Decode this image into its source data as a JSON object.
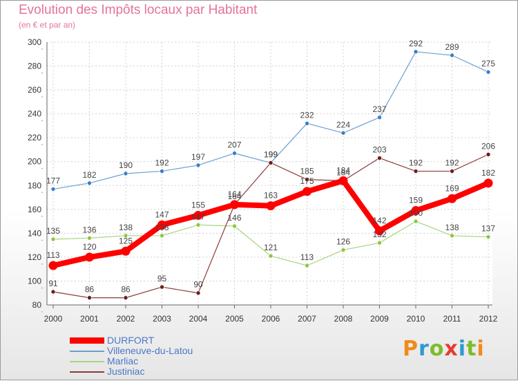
{
  "title": "Evolution des Impôts locaux par Habitant",
  "subtitle": "(en € et par an)",
  "logo_text": "Proxiti",
  "colors": {
    "title": "#e4739a",
    "legend_text": "#4a77c9",
    "axis_text": "#333333",
    "logo": [
      "#f08a1c",
      "#2e9ad0",
      "#7dbb2a",
      "#e63d2e",
      "#2e9ad0",
      "#7dbb2a",
      "#f08a1c"
    ]
  },
  "chart_data": {
    "type": "line",
    "title": "Evolution des Impôts locaux par Habitant",
    "subtitle": "(en € et par an)",
    "x": [
      "2000",
      "2001",
      "2002",
      "2003",
      "2004",
      "2005",
      "2006",
      "2007",
      "2008",
      "2009",
      "2010",
      "2011",
      "2012"
    ],
    "ylim": [
      80,
      300
    ],
    "yticks": [
      80,
      100,
      120,
      140,
      160,
      180,
      200,
      220,
      240,
      260,
      280,
      300
    ],
    "grid": true,
    "legend_position": "bottom-left",
    "series": [
      {
        "name": "Villeneuve-du-Latou",
        "color": "#6b9fd1",
        "marker": "#3a7fc4",
        "width": 1.2,
        "radius": 3,
        "values": [
          177,
          182,
          190,
          192,
          197,
          207,
          199,
          232,
          224,
          237,
          292,
          289,
          275
        ]
      },
      {
        "name": "Marliac",
        "color": "#a6d57e",
        "marker": "#8cc83f",
        "width": 1.2,
        "radius": 3,
        "values": [
          135,
          136,
          138,
          138,
          147,
          146,
          121,
          113,
          126,
          132,
          150,
          138,
          137
        ]
      },
      {
        "name": "Justiniac",
        "color": "#8c3b3b",
        "marker": "#6b1c1c",
        "width": 1.2,
        "radius": 3,
        "values": [
          91,
          86,
          86,
          95,
          90,
          164,
          199,
          185,
          184,
          203,
          192,
          192,
          206
        ]
      },
      {
        "name": "DURFORT",
        "color": "#ff0000",
        "marker": "#ff0000",
        "width": 8,
        "radius": 6.5,
        "values": [
          113,
          120,
          125,
          147,
          155,
          164,
          163,
          175,
          184,
          142,
          159,
          169,
          182
        ]
      }
    ],
    "legend_order": [
      "DURFORT",
      "Villeneuve-du-Latou",
      "Marliac",
      "Justiniac"
    ]
  }
}
